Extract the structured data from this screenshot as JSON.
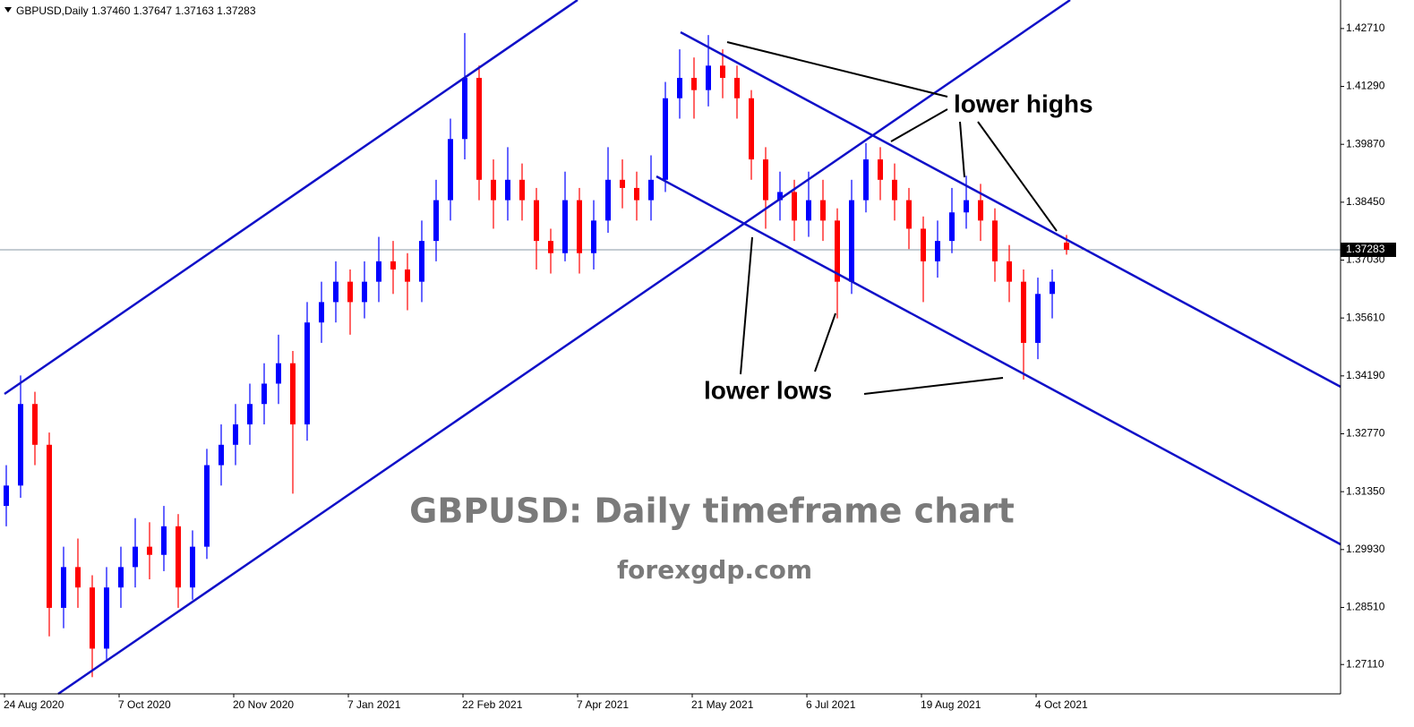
{
  "chart_data": {
    "type": "candlestick",
    "header": "GBPUSD,Daily  1.37460 1.37647 1.37163 1.37283",
    "watermark_title": "GBPUSD: Daily timeframe chart",
    "watermark_site": "forexgdp.com",
    "annotations": [
      "lower highs",
      "lower lows"
    ],
    "categories": [
      "24 Aug 2020",
      null,
      null,
      null,
      null,
      null,
      null,
      null,
      "7 Oct 2020",
      null,
      null,
      null,
      null,
      null,
      null,
      null,
      "20 Nov 2020",
      null,
      null,
      null,
      null,
      null,
      null,
      null,
      "7 Jan 2021",
      null,
      null,
      null,
      null,
      null,
      null,
      null,
      "22 Feb 2021",
      null,
      null,
      null,
      null,
      null,
      null,
      null,
      "7 Apr 2021",
      null,
      null,
      null,
      null,
      null,
      null,
      null,
      "21 May 2021",
      null,
      null,
      null,
      null,
      null,
      null,
      null,
      "6 Jul 2021",
      null,
      null,
      null,
      null,
      null,
      null,
      null,
      "19 Aug 2021",
      null,
      null,
      null,
      null,
      null,
      null,
      null,
      "4 Oct 2021",
      null,
      null
    ],
    "open": [
      1.31,
      1.315,
      1.335,
      1.325,
      1.285,
      1.295,
      1.29,
      1.275,
      1.29,
      1.295,
      1.3,
      1.298,
      1.305,
      1.29,
      1.3,
      1.32,
      1.325,
      1.33,
      1.335,
      1.34,
      1.345,
      1.33,
      1.355,
      1.36,
      1.365,
      1.36,
      1.365,
      1.37,
      1.368,
      1.365,
      1.375,
      1.385,
      1.4,
      1.415,
      1.39,
      1.385,
      1.39,
      1.385,
      1.375,
      1.372,
      1.385,
      1.372,
      1.38,
      1.39,
      1.388,
      1.385,
      1.39,
      1.41,
      1.415,
      1.412,
      1.418,
      1.415,
      1.41,
      1.395,
      1.385,
      1.387,
      1.38,
      1.385,
      1.38,
      1.365,
      1.385,
      1.395,
      1.39,
      1.385,
      1.378,
      1.37,
      1.375,
      1.382,
      1.385,
      1.38,
      1.37,
      1.365,
      1.35,
      1.362,
      1.3746
    ],
    "high": [
      1.32,
      1.342,
      1.338,
      1.328,
      1.3,
      1.302,
      1.293,
      1.295,
      1.3,
      1.307,
      1.306,
      1.31,
      1.308,
      1.304,
      1.324,
      1.33,
      1.335,
      1.34,
      1.345,
      1.352,
      1.348,
      1.36,
      1.365,
      1.37,
      1.368,
      1.37,
      1.376,
      1.375,
      1.372,
      1.38,
      1.39,
      1.405,
      1.426,
      1.418,
      1.395,
      1.398,
      1.394,
      1.388,
      1.378,
      1.392,
      1.388,
      1.385,
      1.398,
      1.395,
      1.392,
      1.396,
      1.414,
      1.422,
      1.42,
      1.4255,
      1.422,
      1.418,
      1.412,
      1.398,
      1.392,
      1.39,
      1.392,
      1.39,
      1.383,
      1.39,
      1.399,
      1.398,
      1.394,
      1.388,
      1.381,
      1.38,
      1.388,
      1.391,
      1.389,
      1.383,
      1.374,
      1.368,
      1.366,
      1.368,
      1.37647
    ],
    "low": [
      1.305,
      1.312,
      1.32,
      1.278,
      1.28,
      1.285,
      1.268,
      1.272,
      1.285,
      1.29,
      1.292,
      1.294,
      1.285,
      1.287,
      1.297,
      1.315,
      1.32,
      1.325,
      1.33,
      1.335,
      1.313,
      1.326,
      1.35,
      1.355,
      1.352,
      1.356,
      1.36,
      1.362,
      1.358,
      1.36,
      1.37,
      1.38,
      1.395,
      1.385,
      1.378,
      1.38,
      1.38,
      1.368,
      1.367,
      1.37,
      1.367,
      1.368,
      1.377,
      1.383,
      1.38,
      1.38,
      1.387,
      1.405,
      1.405,
      1.408,
      1.41,
      1.405,
      1.39,
      1.378,
      1.38,
      1.375,
      1.376,
      1.375,
      1.356,
      1.362,
      1.382,
      1.385,
      1.38,
      1.373,
      1.36,
      1.366,
      1.372,
      1.378,
      1.375,
      1.365,
      1.36,
      1.341,
      1.346,
      1.356,
      1.37163
    ],
    "close": [
      1.315,
      1.335,
      1.325,
      1.285,
      1.295,
      1.29,
      1.275,
      1.29,
      1.295,
      1.3,
      1.298,
      1.305,
      1.29,
      1.3,
      1.32,
      1.325,
      1.33,
      1.335,
      1.34,
      1.345,
      1.33,
      1.355,
      1.36,
      1.365,
      1.36,
      1.365,
      1.37,
      1.368,
      1.365,
      1.375,
      1.385,
      1.4,
      1.415,
      1.39,
      1.385,
      1.39,
      1.385,
      1.375,
      1.372,
      1.385,
      1.372,
      1.38,
      1.39,
      1.388,
      1.385,
      1.39,
      1.41,
      1.415,
      1.412,
      1.418,
      1.415,
      1.41,
      1.395,
      1.385,
      1.387,
      1.38,
      1.385,
      1.38,
      1.365,
      1.385,
      1.395,
      1.39,
      1.385,
      1.378,
      1.37,
      1.375,
      1.382,
      1.385,
      1.38,
      1.37,
      1.365,
      1.35,
      1.362,
      1.365,
      1.37283
    ],
    "up_color": "#0000ff",
    "down_color": "#ff0000",
    "current_price": 1.37283,
    "ylim": [
      1.2639,
      1.4341
    ],
    "yticks": [
      {
        "value": 1.4271,
        "label": "1.42710"
      },
      {
        "value": 1.4129,
        "label": "1.41290"
      },
      {
        "value": 1.3987,
        "label": "1.39870"
      },
      {
        "value": 1.3845,
        "label": "1.38450"
      },
      {
        "value": 1.3703,
        "label": "1.37030"
      },
      {
        "value": 1.3561,
        "label": "1.35610"
      },
      {
        "value": 1.3419,
        "label": "1.34190"
      },
      {
        "value": 1.3277,
        "label": "1.32770"
      },
      {
        "value": 1.3135,
        "label": "1.31350"
      },
      {
        "value": 1.2993,
        "label": "1.29930"
      },
      {
        "value": 1.2851,
        "label": "1.28510"
      },
      {
        "value": 1.2711,
        "label": "1.27110"
      }
    ],
    "grid": false
  }
}
